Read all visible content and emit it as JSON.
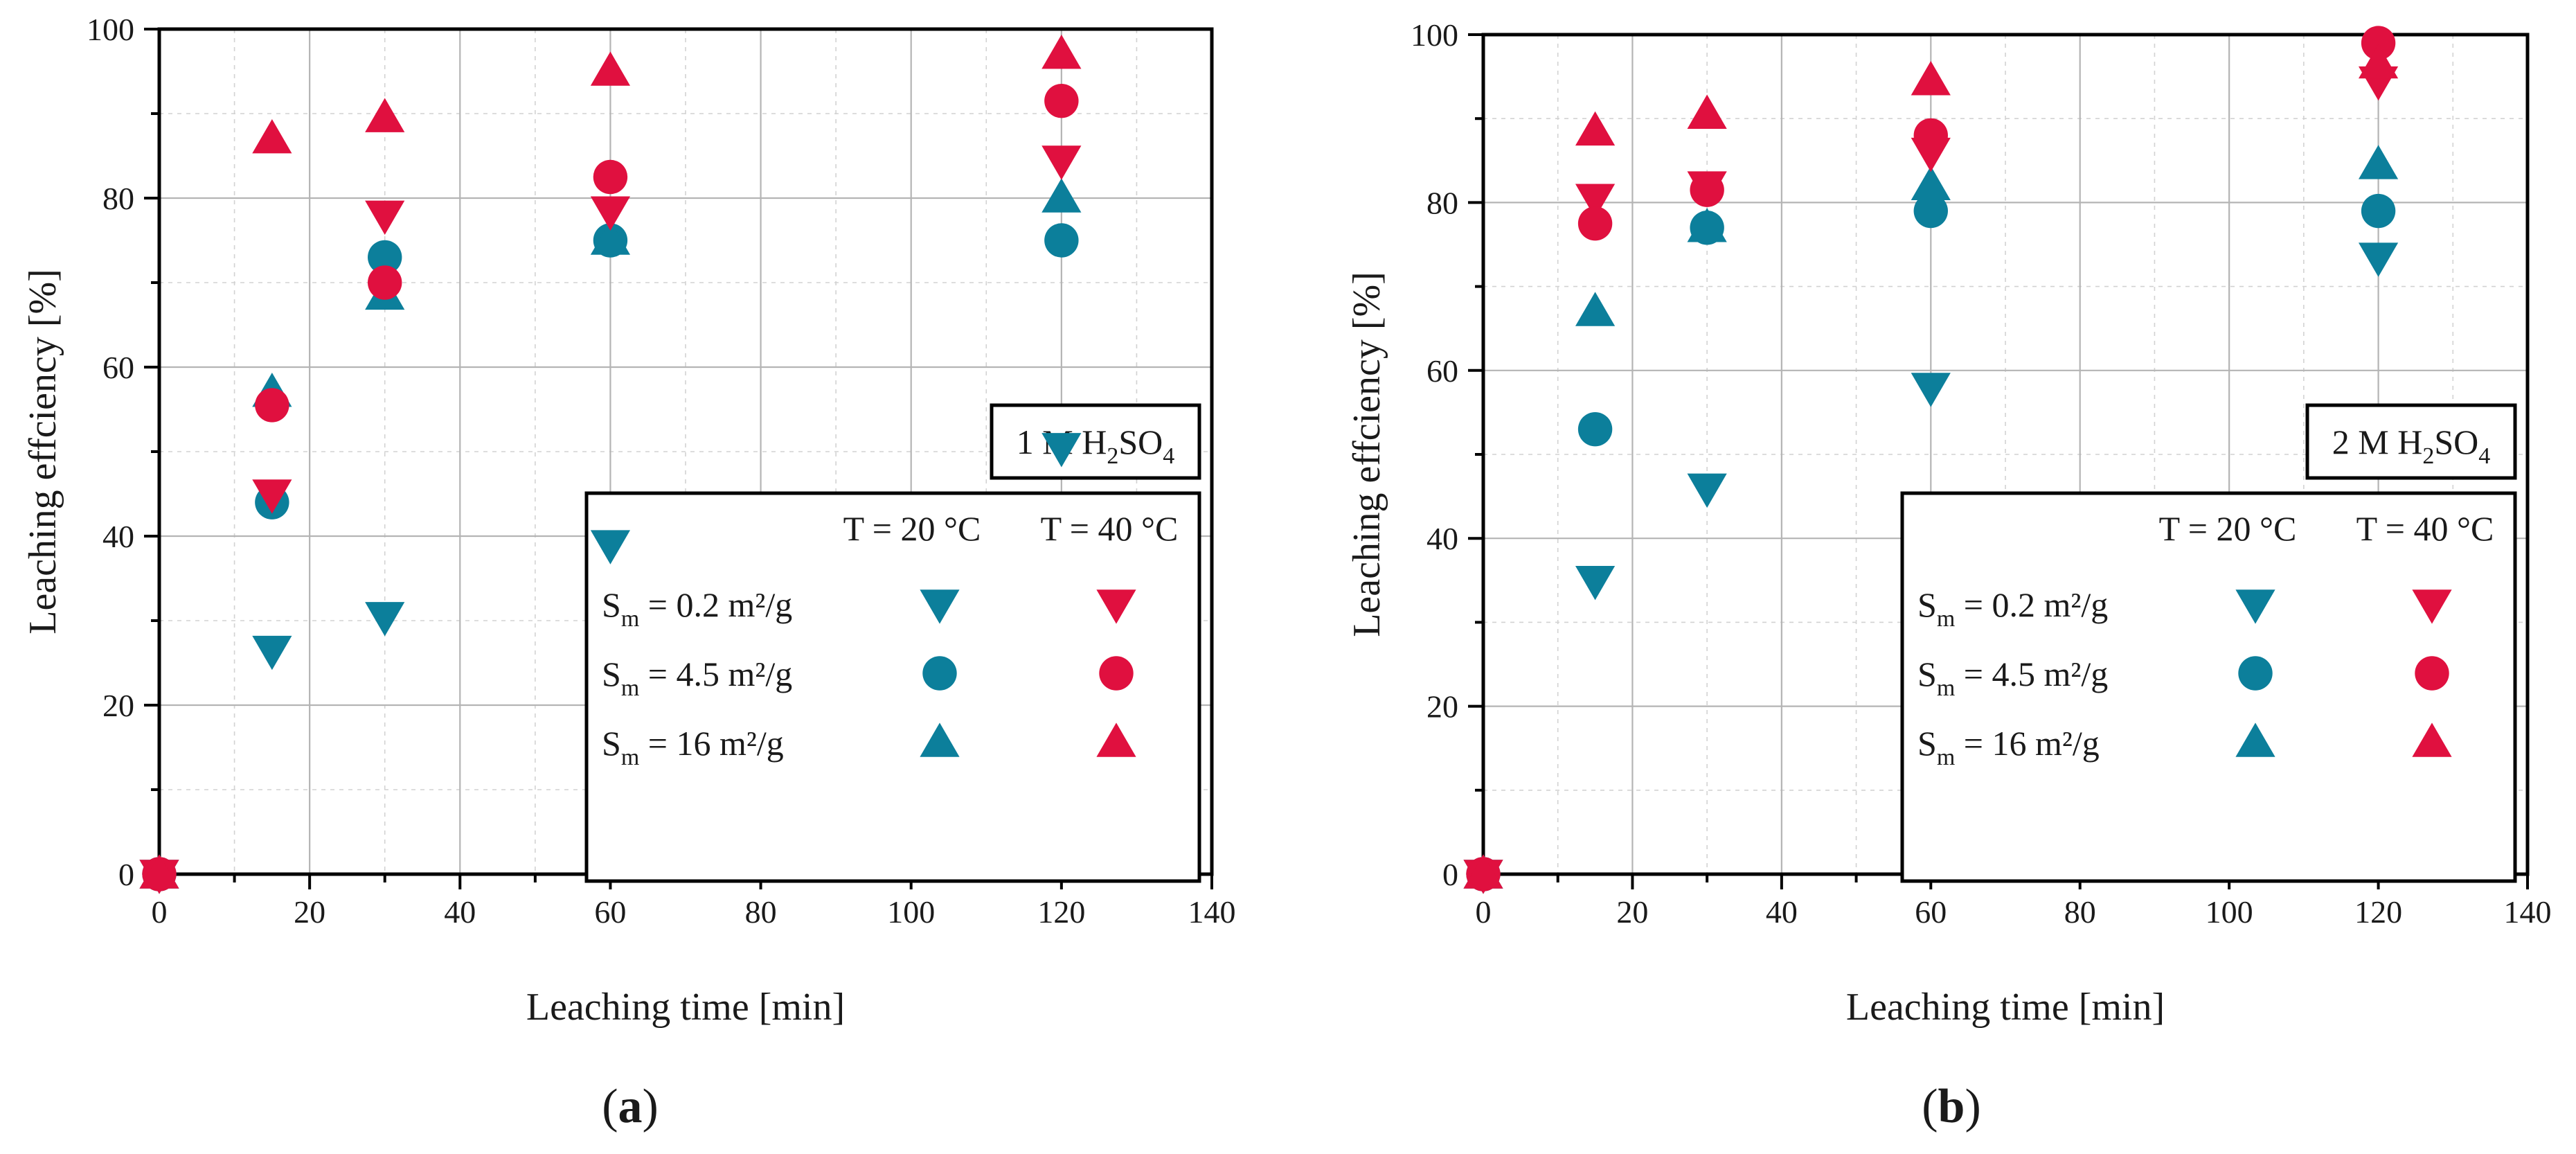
{
  "colors": {
    "t20": "#0c7f9b",
    "t40": "#e0103f"
  },
  "chart_data": [
    {
      "panel": "(a)",
      "panel_letter": "a",
      "type": "scatter",
      "xlabel": "Leaching time [min]",
      "ylabel": "Leaching effciency [%]",
      "xlim": [
        0,
        140
      ],
      "ylim": [
        0,
        100
      ],
      "xticks": [
        0,
        20,
        40,
        60,
        80,
        100,
        120,
        140
      ],
      "yticks": [
        0,
        20,
        40,
        60,
        80,
        100
      ],
      "acid_label": {
        "pre": "1 M H",
        "sub1": "2",
        "mid": "SO",
        "sub2": "4"
      },
      "series": [
        {
          "name": "Sm = 0.2 m²/g, T = 20 °C",
          "marker": "triangle-down",
          "color": "t20",
          "x": [
            0,
            15,
            30,
            60,
            120
          ],
          "y": [
            0,
            26.5,
            30.5,
            39,
            50.5
          ]
        },
        {
          "name": "Sm = 4.5 m²/g, T = 20 °C",
          "marker": "circle",
          "color": "t20",
          "x": [
            0,
            15,
            30,
            60,
            120
          ],
          "y": [
            0,
            44,
            73,
            75,
            75
          ]
        },
        {
          "name": "Sm = 16 m²/g, T = 20 °C",
          "marker": "triangle-up",
          "color": "t20",
          "x": [
            0,
            15,
            30,
            60,
            120
          ],
          "y": [
            0,
            57,
            68.5,
            75,
            80
          ]
        },
        {
          "name": "Sm = 0.2 m²/g, T = 40 °C",
          "marker": "triangle-down",
          "color": "t40",
          "x": [
            0,
            15,
            30,
            60,
            120
          ],
          "y": [
            0,
            45,
            78,
            78.5,
            84.5
          ]
        },
        {
          "name": "Sm = 4.5 m²/g, T = 40 °C",
          "marker": "circle",
          "color": "t40",
          "x": [
            0,
            15,
            30,
            60,
            120
          ],
          "y": [
            0,
            55.5,
            70,
            82.5,
            91.5
          ]
        },
        {
          "name": "Sm = 16 m²/g, T = 40 °C",
          "marker": "triangle-up",
          "color": "t40",
          "x": [
            0,
            15,
            30,
            60,
            120
          ],
          "y": [
            0,
            87,
            89.5,
            95,
            97
          ]
        }
      ]
    },
    {
      "panel": "(b)",
      "panel_letter": "b",
      "type": "scatter",
      "xlabel": "Leaching time [min]",
      "ylabel": "Leaching effciency [%]",
      "xlim": [
        0,
        140
      ],
      "ylim": [
        0,
        100
      ],
      "xticks": [
        0,
        20,
        40,
        60,
        80,
        100,
        120,
        140
      ],
      "yticks": [
        0,
        20,
        40,
        60,
        80,
        100
      ],
      "acid_label": {
        "pre": "2 M H",
        "sub1": "2",
        "mid": "SO",
        "sub2": "4"
      },
      "series": [
        {
          "name": "Sm = 0.2 m²/g, T = 20 °C",
          "marker": "triangle-down",
          "color": "t20",
          "x": [
            0,
            15,
            30,
            60,
            120
          ],
          "y": [
            0,
            35,
            46,
            58,
            73.5
          ]
        },
        {
          "name": "Sm = 4.5 m²/g, T = 20 °C",
          "marker": "circle",
          "color": "t20",
          "x": [
            0,
            15,
            30,
            60,
            120
          ],
          "y": [
            0,
            53,
            77,
            79,
            79
          ]
        },
        {
          "name": "Sm = 16 m²/g, T = 20 °C",
          "marker": "triangle-up",
          "color": "t20",
          "x": [
            0,
            15,
            30,
            60,
            120
          ],
          "y": [
            0,
            67,
            77,
            82,
            84.5
          ]
        },
        {
          "name": "Sm = 0.2 m²/g, T = 40 °C",
          "marker": "triangle-down",
          "color": "t40",
          "x": [
            0,
            15,
            30,
            60,
            120
          ],
          "y": [
            0,
            80.5,
            82,
            86,
            94.5
          ]
        },
        {
          "name": "Sm = 4.5 m²/g, T = 40 °C",
          "marker": "circle",
          "color": "t40",
          "x": [
            0,
            15,
            30,
            60,
            120
          ],
          "y": [
            0,
            77.5,
            81.5,
            88,
            99
          ]
        },
        {
          "name": "Sm = 16 m²/g, T = 40 °C",
          "marker": "triangle-up",
          "color": "t40",
          "x": [
            0,
            15,
            30,
            60,
            120
          ],
          "y": [
            0,
            88.5,
            90.5,
            94.5,
            96.5
          ]
        }
      ]
    }
  ],
  "legend": {
    "header_t20": "T = 20 °C",
    "header_t40": "T = 40 °C",
    "rows": [
      {
        "label_pre": "S",
        "label_sub": "m",
        "label_post": " = 0.2 m²/g",
        "marker": "triangle-down"
      },
      {
        "label_pre": "S",
        "label_sub": "m",
        "label_post": " = 4.5 m²/g",
        "marker": "circle"
      },
      {
        "label_pre": "S",
        "label_sub": "m",
        "label_post": " = 16 m²/g",
        "marker": "triangle-up"
      }
    ]
  }
}
